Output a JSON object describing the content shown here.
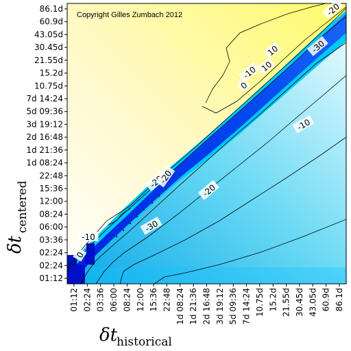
{
  "chart_data": {
    "type": "heatmap",
    "title": "",
    "copyright": "Copyright Gilles Zumbach 2012",
    "xlabel": {
      "main": "δt",
      "sub": "historical"
    },
    "ylabel": {
      "main": "δt",
      "sub": "centered"
    },
    "x_ticks": [
      "01:12",
      "02:24",
      "03:36",
      "06:00",
      "08:24",
      "12:00",
      "15:36",
      "22:48",
      "1d 08:24",
      "1d 21:36",
      "2d 16:48",
      "3d 19:12",
      "5d 09:36",
      "7d 14:24",
      "10.75d",
      "15.2d",
      "21.55d",
      "30.45d",
      "43.05d",
      "60.9d",
      "86.1d"
    ],
    "y_ticks": [
      "01:12",
      "02:24",
      "02:24",
      "03:36",
      "06:00",
      "08:24",
      "12:00",
      "15:36",
      "22:48",
      "1d 08:24",
      "1d 21:36",
      "2d 16:48",
      "3d 19:12",
      "5d 09:36",
      "7d 14:24",
      "10.75d",
      "15.2d",
      "21.55d",
      "30.45d",
      "43.05d",
      "60.9d",
      "86.1d"
    ],
    "contour_labels": [
      {
        "value": "10",
        "text": "10"
      },
      {
        "value": "10b",
        "text": "10"
      },
      {
        "value": "0",
        "text": "0"
      },
      {
        "value": "m10",
        "text": "-10"
      },
      {
        "value": "m20",
        "text": "-20"
      },
      {
        "value": "m30",
        "text": "-30"
      },
      {
        "value": "m20b",
        "text": "-20"
      },
      {
        "value": "m20c",
        "text": "-20"
      },
      {
        "value": "m30b",
        "text": "-30"
      },
      {
        "value": "m10b",
        "text": "-10"
      },
      {
        "value": "m20d",
        "text": "-20"
      },
      {
        "value": "zero2",
        "text": "0"
      },
      {
        "value": "m10c",
        "text": "-10"
      }
    ],
    "colorscale": [
      "#fdfd66",
      "#ffffff",
      "#00ccff",
      "#0000cc"
    ],
    "levels": [
      10,
      0,
      -10,
      -20,
      -30
    ]
  }
}
